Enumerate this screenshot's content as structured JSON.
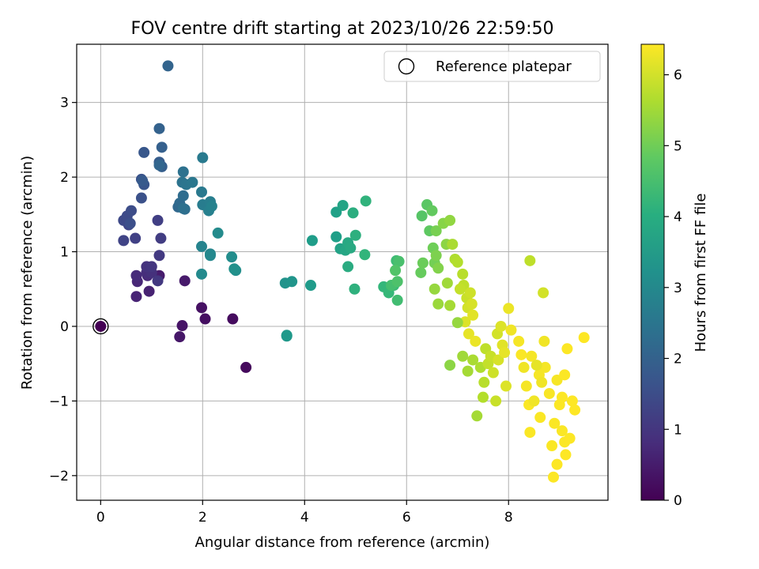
{
  "chart_data": {
    "type": "scatter",
    "title": "FOV centre drift starting at 2023/10/26 22:59:50",
    "xlabel": "Angular distance from reference (arcmin)",
    "ylabel": "Rotation from reference (arcmin)",
    "xlim": [
      -0.47,
      9.95
    ],
    "ylim": [
      -2.33,
      3.78
    ],
    "xticks": [
      0,
      2,
      4,
      6,
      8
    ],
    "xtick_labels": [
      "0",
      "2",
      "4",
      "6",
      "8"
    ],
    "yticks": [
      -2,
      -1,
      0,
      1,
      2,
      3
    ],
    "ytick_labels": [
      "−2",
      "−1",
      "0",
      "1",
      "2",
      "3"
    ],
    "grid": true,
    "legend": {
      "placement": "upper-right",
      "entries": [
        "Reference platepar"
      ]
    },
    "colorbar": {
      "label": "Hours from first FF file",
      "range": [
        0,
        6.43
      ],
      "ticks": [
        0,
        1,
        2,
        3,
        4,
        5,
        6
      ],
      "tick_labels": [
        "0",
        "1",
        "2",
        "3",
        "4",
        "5",
        "6"
      ],
      "colormap": "viridis"
    },
    "reference_point": {
      "x": 0,
      "y": 0
    },
    "points": [
      [
        0.0,
        0.0,
        0.0
      ],
      [
        2.85,
        -0.55,
        0.15
      ],
      [
        2.59,
        0.1,
        0.2
      ],
      [
        2.05,
        0.1,
        0.25
      ],
      [
        1.98,
        0.25,
        0.3
      ],
      [
        1.6,
        0.01,
        0.35
      ],
      [
        1.55,
        -0.14,
        0.4
      ],
      [
        1.65,
        0.61,
        0.45
      ],
      [
        1.15,
        0.68,
        0.5
      ],
      [
        0.95,
        0.47,
        0.6
      ],
      [
        0.7,
        0.4,
        0.65
      ],
      [
        0.72,
        0.6,
        0.7
      ],
      [
        0.92,
        0.68,
        0.75
      ],
      [
        0.7,
        0.68,
        0.8
      ],
      [
        0.9,
        0.72,
        0.85
      ],
      [
        1.0,
        0.72,
        0.9
      ],
      [
        0.9,
        0.8,
        0.95
      ],
      [
        1.0,
        0.8,
        1.0
      ],
      [
        1.12,
        0.61,
        1.05
      ],
      [
        1.15,
        0.95,
        1.1
      ],
      [
        1.18,
        1.18,
        1.15
      ],
      [
        1.12,
        1.42,
        1.2
      ],
      [
        0.68,
        1.18,
        1.25
      ],
      [
        0.45,
        1.15,
        1.3
      ],
      [
        0.55,
        1.36,
        1.35
      ],
      [
        0.45,
        1.42,
        1.4
      ],
      [
        0.52,
        1.48,
        1.45
      ],
      [
        0.6,
        1.55,
        1.5
      ],
      [
        0.58,
        1.38,
        1.55
      ],
      [
        0.8,
        1.72,
        1.6
      ],
      [
        0.8,
        1.97,
        1.65
      ],
      [
        0.85,
        1.9,
        1.7
      ],
      [
        0.85,
        2.33,
        1.75
      ],
      [
        0.82,
        1.95,
        1.8
      ],
      [
        1.15,
        2.2,
        1.85
      ],
      [
        1.2,
        2.14,
        1.9
      ],
      [
        1.2,
        2.4,
        1.95
      ],
      [
        1.15,
        2.65,
        2.0
      ],
      [
        1.32,
        3.49,
        2.05
      ],
      [
        1.15,
        2.16,
        2.1
      ],
      [
        1.52,
        1.6,
        2.15
      ],
      [
        1.55,
        1.65,
        2.2
      ],
      [
        1.62,
        1.75,
        2.25
      ],
      [
        1.65,
        1.57,
        2.3
      ],
      [
        1.62,
        1.58,
        2.35
      ],
      [
        1.62,
        2.07,
        2.4
      ],
      [
        1.6,
        1.93,
        2.45
      ],
      [
        1.68,
        1.9,
        2.5
      ],
      [
        1.8,
        1.93,
        2.55
      ],
      [
        1.98,
        1.8,
        2.6
      ],
      [
        2.0,
        2.26,
        2.65
      ],
      [
        2.0,
        1.63,
        2.7
      ],
      [
        2.15,
        1.67,
        2.75
      ],
      [
        2.12,
        1.55,
        2.8
      ],
      [
        2.18,
        1.61,
        2.85
      ],
      [
        1.98,
        1.07,
        2.9
      ],
      [
        2.15,
        0.97,
        2.95
      ],
      [
        2.15,
        0.95,
        3.0
      ],
      [
        1.98,
        0.7,
        3.05
      ],
      [
        2.3,
        1.25,
        3.1
      ],
      [
        2.57,
        0.93,
        3.15
      ],
      [
        2.65,
        0.75,
        3.2
      ],
      [
        2.62,
        0.77,
        3.25
      ],
      [
        3.62,
        0.58,
        3.3
      ],
      [
        3.75,
        0.6,
        3.35
      ],
      [
        3.65,
        -0.13,
        3.4
      ],
      [
        3.65,
        -0.12,
        3.45
      ],
      [
        4.12,
        0.55,
        3.5
      ],
      [
        4.15,
        1.15,
        3.55
      ],
      [
        4.62,
        1.2,
        3.6
      ],
      [
        4.62,
        1.53,
        3.65
      ],
      [
        4.7,
        1.04,
        3.7
      ],
      [
        4.75,
        1.62,
        3.75
      ],
      [
        4.8,
        1.02,
        3.8
      ],
      [
        4.85,
        1.12,
        3.85
      ],
      [
        4.9,
        1.05,
        3.9
      ],
      [
        4.85,
        0.8,
        3.95
      ],
      [
        4.95,
        1.52,
        4.0
      ],
      [
        5.0,
        1.22,
        4.05
      ],
      [
        4.98,
        0.5,
        4.1
      ],
      [
        5.2,
        1.68,
        4.15
      ],
      [
        5.18,
        0.96,
        4.2
      ],
      [
        5.55,
        0.53,
        4.25
      ],
      [
        5.65,
        0.45,
        4.3
      ],
      [
        5.75,
        0.55,
        4.35
      ],
      [
        5.8,
        0.88,
        4.4
      ],
      [
        5.82,
        0.35,
        4.45
      ],
      [
        5.7,
        0.55,
        4.5
      ],
      [
        5.85,
        0.87,
        4.55
      ],
      [
        5.82,
        0.6,
        4.6
      ],
      [
        5.78,
        0.75,
        4.65
      ],
      [
        6.3,
        1.48,
        4.7
      ],
      [
        6.4,
        1.63,
        4.75
      ],
      [
        6.45,
        1.28,
        4.8
      ],
      [
        6.5,
        1.55,
        4.85
      ],
      [
        6.28,
        0.72,
        4.9
      ],
      [
        6.32,
        0.85,
        4.95
      ],
      [
        6.52,
        1.05,
        5.0
      ],
      [
        6.55,
        0.85,
        5.05
      ],
      [
        6.58,
        1.28,
        5.1
      ],
      [
        6.58,
        0.95,
        5.15
      ],
      [
        6.62,
        0.78,
        5.2
      ],
      [
        6.72,
        1.38,
        5.25
      ],
      [
        6.78,
        1.1,
        5.3
      ],
      [
        6.85,
        1.42,
        5.35
      ],
      [
        6.55,
        0.5,
        5.4
      ],
      [
        6.62,
        0.3,
        5.45
      ],
      [
        6.8,
        0.58,
        5.5
      ],
      [
        6.85,
        0.28,
        5.55
      ],
      [
        6.9,
        1.1,
        5.6
      ],
      [
        6.95,
        0.9,
        5.65
      ],
      [
        7.0,
        0.86,
        5.7
      ],
      [
        7.1,
        0.7,
        5.75
      ],
      [
        7.12,
        0.55,
        5.8
      ],
      [
        7.05,
        0.5,
        5.85
      ],
      [
        7.18,
        0.38,
        5.9
      ],
      [
        7.25,
        0.45,
        5.95
      ],
      [
        7.2,
        0.25,
        6.0
      ],
      [
        7.28,
        0.3,
        6.05
      ],
      [
        7.15,
        0.06,
        6.1
      ],
      [
        7.3,
        0.15,
        6.15
      ],
      [
        7.22,
        -0.1,
        6.2
      ],
      [
        7.35,
        -0.2,
        6.25
      ]
    ],
    "points_group2": [
      [
        6.85,
        -0.52,
        5.3
      ],
      [
        7.0,
        0.05,
        5.4
      ],
      [
        7.1,
        -0.4,
        5.5
      ],
      [
        7.2,
        -0.6,
        5.55
      ],
      [
        7.3,
        -0.45,
        5.6
      ],
      [
        7.38,
        -1.2,
        5.55
      ],
      [
        7.45,
        -0.55,
        5.65
      ],
      [
        7.5,
        -0.95,
        5.7
      ],
      [
        7.52,
        -0.75,
        5.75
      ],
      [
        7.55,
        -0.3,
        5.8
      ],
      [
        7.6,
        -0.5,
        5.85
      ],
      [
        7.65,
        -0.4,
        5.9
      ],
      [
        7.7,
        -0.62,
        5.95
      ],
      [
        7.75,
        -1.0,
        5.9
      ],
      [
        7.78,
        -0.1,
        6.0
      ],
      [
        7.8,
        -0.45,
        6.05
      ],
      [
        7.85,
        0.0,
        6.1
      ],
      [
        7.88,
        -0.25,
        6.15
      ],
      [
        7.95,
        -0.8,
        6.1
      ],
      [
        7.92,
        -0.35,
        6.2
      ],
      [
        8.0,
        0.24,
        6.25
      ],
      [
        8.05,
        -0.05,
        6.3
      ],
      [
        8.2,
        -0.2,
        6.35
      ],
      [
        8.25,
        -0.38,
        6.4
      ],
      [
        8.3,
        -0.55,
        6.3
      ],
      [
        8.35,
        -0.8,
        6.35
      ],
      [
        8.4,
        -1.05,
        6.4
      ],
      [
        8.45,
        -0.4,
        6.35
      ],
      [
        8.5,
        -1.0,
        6.3
      ],
      [
        8.42,
        -1.42,
        6.4
      ],
      [
        8.6,
        -0.65,
        6.35
      ],
      [
        8.62,
        -1.22,
        6.4
      ],
      [
        8.7,
        -0.2,
        6.3
      ],
      [
        8.72,
        -0.55,
        6.35
      ],
      [
        8.8,
        -0.9,
        6.38
      ],
      [
        8.85,
        -1.6,
        6.4
      ],
      [
        8.88,
        -2.02,
        6.42
      ],
      [
        8.9,
        -1.3,
        6.4
      ],
      [
        8.95,
        -1.85,
        6.42
      ],
      [
        9.0,
        -1.05,
        6.41
      ],
      [
        9.05,
        -0.95,
        6.42
      ],
      [
        9.1,
        -1.55,
        6.41
      ],
      [
        9.12,
        -1.72,
        6.43
      ],
      [
        9.15,
        -0.3,
        6.42
      ],
      [
        9.2,
        -1.5,
        6.42
      ],
      [
        9.25,
        -1.0,
        6.43
      ],
      [
        9.3,
        -1.12,
        6.43
      ],
      [
        9.48,
        -0.15,
        6.43
      ],
      [
        8.42,
        0.88,
        5.8
      ],
      [
        8.68,
        0.45,
        6.0
      ],
      [
        8.65,
        -0.75,
        6.3
      ],
      [
        8.55,
        -0.52,
        6.2
      ],
      [
        8.95,
        -0.72,
        6.36
      ],
      [
        9.05,
        -1.4,
        6.4
      ],
      [
        9.1,
        -0.65,
        6.41
      ]
    ]
  }
}
